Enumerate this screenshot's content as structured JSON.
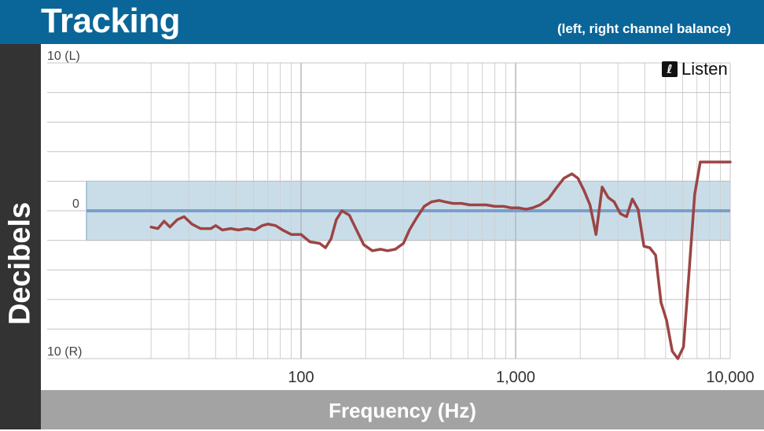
{
  "header": {
    "title": "Tracking",
    "subtitle": "(left, right channel balance)"
  },
  "branding": {
    "logo_text": "Listen",
    "logo_icon": "ear-icon"
  },
  "colors": {
    "header_bg": "#0a6699",
    "ybar_bg": "#333333",
    "xbar_bg": "#a3a3a3",
    "band_fill": "#c9dde9",
    "band_edge": "#7fa3bd",
    "zero_line": "#7a9fc9",
    "series_line": "#9c4444",
    "grid": "#d0d0d0"
  },
  "chart_data": {
    "type": "line",
    "title": "Tracking",
    "subtitle": "(left, right channel balance)",
    "xlabel": "Frequency (Hz)",
    "ylabel": "Decibels",
    "x_scale": "log",
    "xlim": [
      10,
      10000
    ],
    "ylim": [
      -10,
      10
    ],
    "x_ticks": [
      {
        "value": 100,
        "label": "100"
      },
      {
        "value": 1000,
        "label": "1,000"
      },
      {
        "value": 10000,
        "label": "10,000"
      }
    ],
    "y_ticks": [
      {
        "value": 10,
        "label": "10 (L)"
      },
      {
        "value": 0,
        "label": "0"
      },
      {
        "value": -10,
        "label": "10 (R)"
      }
    ],
    "grid": true,
    "reference_band": [
      -2,
      2
    ],
    "reference_line": 0,
    "series": [
      {
        "x": [
          20,
          21.5,
          23,
          24.5,
          26.5,
          28.5,
          31,
          34,
          38,
          40,
          43,
          47,
          51,
          56,
          61,
          66,
          70,
          76,
          82,
          90,
          100,
          110,
          122,
          130,
          138,
          146,
          155,
          168,
          180,
          196,
          215,
          235,
          253,
          275,
          300,
          320,
          345,
          375,
          405,
          440,
          470,
          510,
          560,
          610,
          670,
          730,
          800,
          880,
          950,
          1030,
          1120,
          1200,
          1300,
          1420,
          1540,
          1680,
          1830,
          1950,
          2080,
          2220,
          2370,
          2530,
          2700,
          2880,
          3080,
          3290,
          3500,
          3720,
          3960,
          4220,
          4490,
          4760,
          5050,
          5370,
          5700,
          6060,
          6430,
          6830,
          7250,
          7700,
          8100,
          8560,
          9000,
          9450,
          9700,
          10000
        ],
        "values": [
          -1.1,
          -1.2,
          -0.7,
          -1.1,
          -0.6,
          -0.4,
          -0.9,
          -1.2,
          -1.2,
          -1.0,
          -1.3,
          -1.2,
          -1.3,
          -1.2,
          -1.3,
          -1.0,
          -0.9,
          -1.0,
          -1.3,
          -1.6,
          -1.6,
          -2.1,
          -2.2,
          -2.5,
          -1.9,
          -0.6,
          0.0,
          -0.3,
          -1.2,
          -2.3,
          -2.7,
          -2.6,
          -2.7,
          -2.6,
          -2.2,
          -1.3,
          -0.5,
          0.3,
          0.6,
          0.7,
          0.6,
          0.5,
          0.5,
          0.4,
          0.4,
          0.4,
          0.3,
          0.3,
          0.2,
          0.2,
          0.1,
          0.2,
          0.4,
          0.8,
          1.5,
          2.2,
          2.5,
          2.2,
          1.4,
          0.4,
          -1.6,
          1.6,
          0.9,
          0.6,
          -0.2,
          -0.4,
          0.8,
          0.1,
          -2.4,
          -2.5,
          -3.0,
          -6.2,
          -7.4,
          -9.5,
          -10.0,
          -9.2,
          -4.2,
          1.1,
          3.3,
          3.3,
          3.3,
          3.3,
          3.3,
          3.3,
          3.3,
          3.3
        ]
      }
    ]
  }
}
